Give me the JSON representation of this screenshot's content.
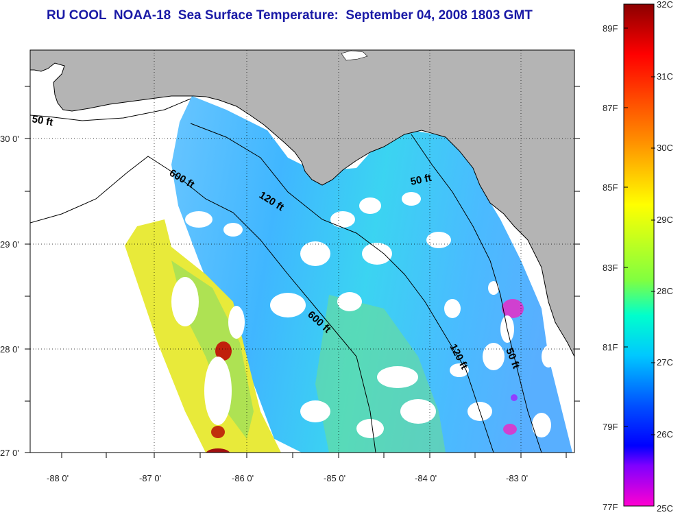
{
  "title": "RU COOL  NOAA-18  Sea Surface Temperature:  September 04, 2008 1803 GMT",
  "map": {
    "lon_ticks": [
      "-88 0'",
      "-87 0'",
      "-86 0'",
      "-85 0'",
      "-84 0'",
      "-83 0'"
    ],
    "lat_ticks": [
      "30 0'",
      "29 0'",
      "28 0'",
      "27 0'"
    ],
    "contour_labels": [
      "50 ft",
      "600 ft",
      "120 ft",
      "50 ft",
      "600 ft",
      "120 ft",
      "50 ft"
    ],
    "land_color": "#b4b4b4",
    "cloud_color": "#ffffff"
  },
  "colorbar": {
    "range_c": [
      25,
      32
    ],
    "range_f": [
      77,
      89
    ],
    "celsius_labels": [
      "32C",
      "31C",
      "30C",
      "29C",
      "28C",
      "27C",
      "26C",
      "25C"
    ],
    "fahrenheit_labels": [
      "89F",
      "87F",
      "85F",
      "83F",
      "81F",
      "79F",
      "77F"
    ],
    "colors": [
      "#8b0000",
      "#ff0000",
      "#ff8c00",
      "#ffff00",
      "#00ff80",
      "#00ffff",
      "#0050ff",
      "#0000ff",
      "#7f00ff",
      "#ff00ff"
    ]
  }
}
